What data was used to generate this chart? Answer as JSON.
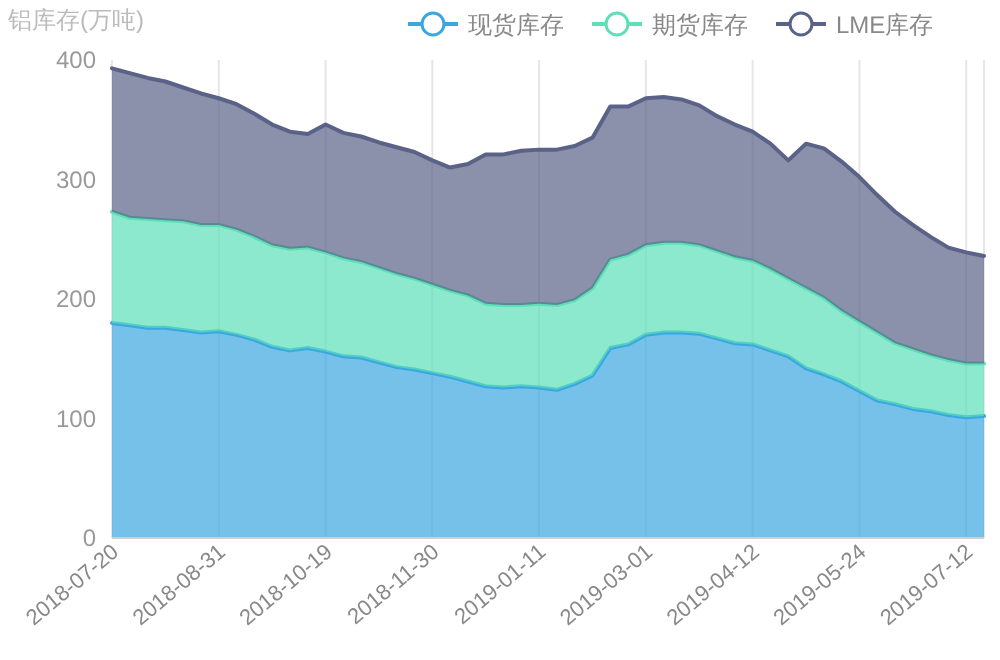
{
  "chart_data": {
    "type": "area",
    "stacked": true,
    "ylabel": "铝库存(万吨)",
    "legend": "top right",
    "grid": "x",
    "ylim": [
      0,
      400
    ],
    "yticks": [
      0,
      100,
      200,
      300,
      400
    ],
    "categories": [
      "2018-07-20",
      null,
      null,
      null,
      null,
      null,
      "2018-08-31",
      null,
      null,
      null,
      null,
      null,
      "2018-10-19",
      null,
      null,
      null,
      null,
      null,
      "2018-11-30",
      null,
      null,
      null,
      null,
      null,
      "2019-01-11",
      null,
      null,
      null,
      null,
      null,
      "2019-03-01",
      null,
      null,
      null,
      null,
      null,
      "2019-04-12",
      null,
      null,
      null,
      null,
      null,
      "2019-05-24",
      null,
      null,
      null,
      null,
      null,
      "2019-07-12",
      null
    ],
    "series": [
      {
        "name": "现货库存",
        "color": "#3aa7e0",
        "values": [
          180,
          178,
          176,
          176,
          174,
          172,
          173,
          170,
          166,
          160,
          157,
          159,
          156,
          152,
          151,
          147,
          143,
          141,
          138,
          135,
          131,
          127,
          126,
          127,
          126,
          124,
          129,
          136,
          159,
          162,
          170,
          172,
          172,
          171,
          167,
          163,
          162,
          157,
          152,
          142,
          137,
          131,
          123,
          115,
          112,
          108,
          106,
          103,
          101,
          102
        ]
      },
      {
        "name": "期货库存",
        "color": "#5de0b8",
        "values": [
          93,
          90,
          91,
          90,
          91,
          90,
          89,
          88,
          86,
          85,
          85,
          84,
          83,
          82,
          80,
          79,
          78,
          76,
          74,
          72,
          72,
          69,
          69,
          68,
          70,
          71,
          70,
          73,
          74,
          75,
          75,
          75,
          75,
          74,
          73,
          72,
          70,
          68,
          65,
          67,
          64,
          59,
          58,
          57,
          51,
          50,
          47,
          46,
          45,
          44
        ]
      },
      {
        "name": "LME库存",
        "color": "#5a6288",
        "values": [
          120,
          121,
          118,
          116,
          112,
          110,
          106,
          105,
          103,
          101,
          98,
          95,
          107,
          105,
          105,
          105,
          106,
          106,
          104,
          103,
          110,
          125,
          126,
          129,
          129,
          130,
          129,
          126,
          128,
          124,
          123,
          122,
          120,
          117,
          113,
          111,
          108,
          105,
          99,
          121,
          125,
          125,
          121,
          115,
          110,
          104,
          99,
          94,
          93,
          90
        ]
      }
    ]
  }
}
